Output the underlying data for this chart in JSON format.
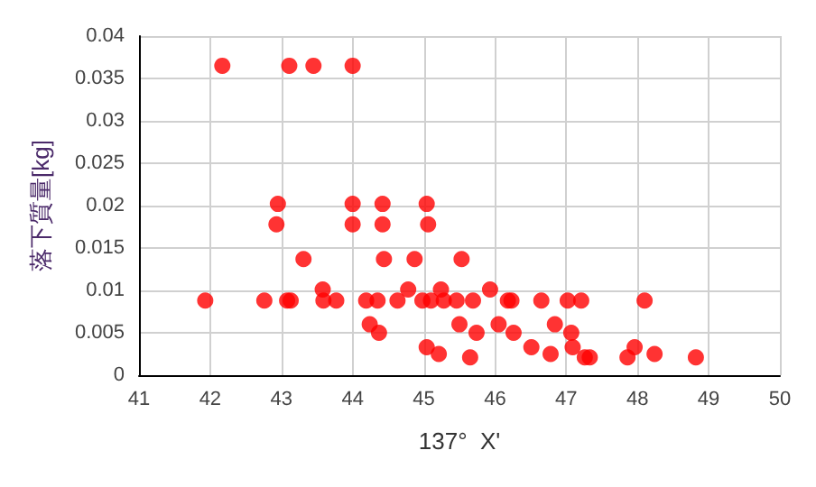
{
  "chart_data": {
    "type": "scatter",
    "xlabel": "137°  X'",
    "ylabel": "落下質量[kg]",
    "xlim": [
      41,
      50
    ],
    "xticks": [
      41,
      42,
      43,
      44,
      45,
      46,
      47,
      48,
      49,
      50
    ],
    "ylim": [
      0,
      0.04
    ],
    "yticks": [
      0,
      0.005,
      0.01,
      0.015,
      0.02,
      0.025,
      0.03,
      0.035,
      0.04
    ],
    "grid": true,
    "marker": "circle",
    "series": [
      {
        "color": "#ff0000",
        "x": [
          42.17,
          43.11,
          43.45,
          44.0,
          42.95,
          44.0,
          44.42,
          45.04,
          42.93,
          44.0,
          44.42,
          45.06,
          43.31,
          44.44,
          44.87,
          45.53,
          43.58,
          44.78,
          45.24,
          45.93,
          41.93,
          42.76,
          43.08,
          43.13,
          43.59,
          43.77,
          44.19,
          44.35,
          44.63,
          44.98,
          45.1,
          45.28,
          45.46,
          45.69,
          46.18,
          46.23,
          46.65,
          47.02,
          47.21,
          48.1,
          45.5,
          46.05,
          46.84,
          44.24,
          44.37,
          45.74,
          46.26,
          47.07,
          45.04,
          46.51,
          47.09,
          47.96,
          45.21,
          46.78,
          48.24,
          45.65,
          47.26,
          47.33,
          47.86,
          48.82
        ],
        "values": [
          0.0365,
          0.0365,
          0.0365,
          0.0365,
          0.0202,
          0.0202,
          0.0202,
          0.0202,
          0.0178,
          0.0178,
          0.0178,
          0.0178,
          0.0137,
          0.0137,
          0.0137,
          0.0137,
          0.0101,
          0.0101,
          0.0101,
          0.0101,
          0.0088,
          0.0088,
          0.0088,
          0.0088,
          0.0088,
          0.0088,
          0.0088,
          0.0088,
          0.0088,
          0.0088,
          0.0088,
          0.0088,
          0.0088,
          0.0088,
          0.0088,
          0.0088,
          0.0088,
          0.0088,
          0.0088,
          0.0088,
          0.006,
          0.006,
          0.006,
          0.006,
          0.005,
          0.005,
          0.005,
          0.005,
          0.0033,
          0.0033,
          0.0033,
          0.0033,
          0.0025,
          0.0025,
          0.0025,
          0.0021,
          0.0021,
          0.0021,
          0.0021,
          0.0021
        ]
      }
    ]
  }
}
